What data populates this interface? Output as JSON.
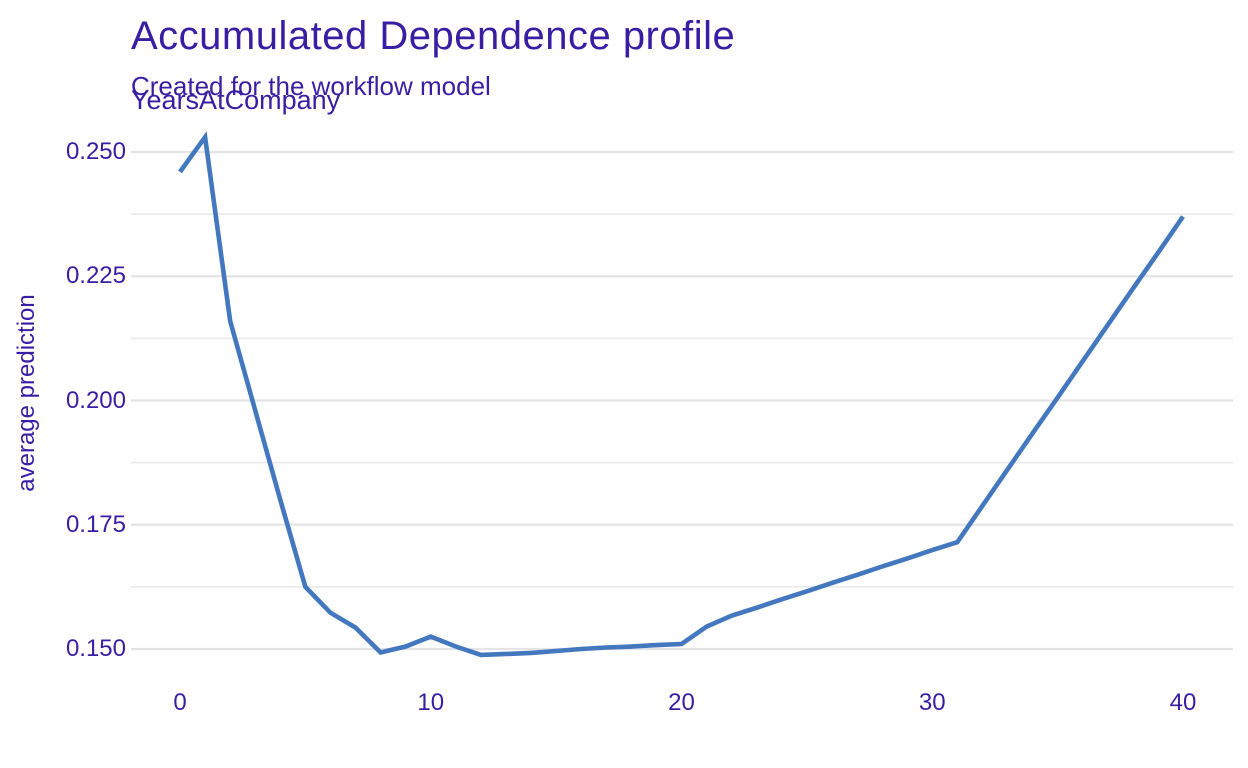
{
  "colors": {
    "text": "#371ea3",
    "line": "#4378bf",
    "grid_major": "#e4e4e7",
    "grid_minor": "#ebebee",
    "background": "#ffffff"
  },
  "chart_data": {
    "type": "line",
    "title": "Accumulated Dependence profile",
    "subtitle": "Created for the workflow model",
    "facet_label": "YearsAtCompany",
    "xlabel": "",
    "ylabel": "average prediction",
    "xlim": [
      0,
      40
    ],
    "ylim": [
      0.1442,
      0.2582
    ],
    "x_ticks": [
      0,
      10,
      20,
      30,
      40
    ],
    "x_tick_labels": [
      "0",
      "10",
      "20",
      "30",
      "40"
    ],
    "y_ticks": [
      0.15,
      0.175,
      0.2,
      0.225,
      0.25
    ],
    "y_tick_labels": [
      "0.150",
      "0.175",
      "0.200",
      "0.225",
      "0.250"
    ],
    "grid": "horizontal major + minor gridlines only, no vertical grid, no axis lines",
    "legend": "none",
    "series": [
      {
        "name": "workflow model",
        "color": "#4378bf",
        "x": [
          0,
          1,
          2,
          3,
          4,
          5,
          6,
          7,
          8,
          9,
          10,
          11,
          12,
          13,
          14,
          15,
          16,
          17,
          18,
          19,
          20,
          21,
          22,
          23,
          24,
          25,
          26,
          27,
          28,
          29,
          30,
          31,
          32,
          33,
          34,
          35,
          36,
          37,
          38,
          39,
          40
        ],
        "values": [
          0.246,
          0.253,
          0.216,
          0.198,
          0.18,
          0.1625,
          0.1573,
          0.1543,
          0.1493,
          0.1505,
          0.1525,
          0.1505,
          0.1488,
          0.149,
          0.1492,
          0.1496,
          0.15,
          0.1503,
          0.1505,
          0.1508,
          0.151,
          0.1545,
          0.1567,
          0.1583,
          0.16,
          0.1616,
          0.1633,
          0.1649,
          0.1666,
          0.1682,
          0.1699,
          0.1715,
          0.1788,
          0.1861,
          0.1934,
          0.2006,
          0.2079,
          0.2152,
          0.2225,
          0.2297,
          0.237
        ]
      }
    ]
  }
}
